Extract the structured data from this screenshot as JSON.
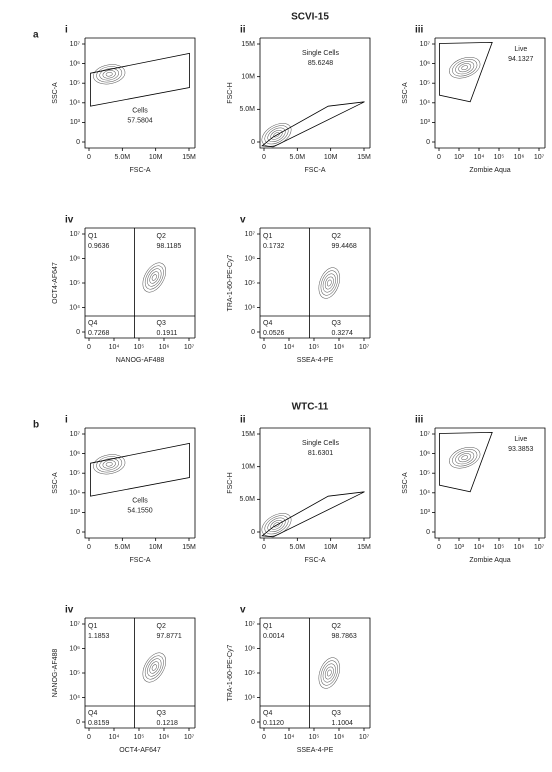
{
  "figure": {
    "sections": [
      {
        "letter": "a",
        "title": "SCVI-15",
        "panels": [
          {
            "numeral": "i",
            "x_label": "FSC-A",
            "y_label": "SSC-A",
            "xticks": [
              "0",
              "5.0M",
              "10M",
              "15M"
            ],
            "yticks": [
              "0",
              "10³",
              "10⁴",
              "10⁵",
              "10⁶",
              "10⁷"
            ],
            "gate": {
              "name": "Cells",
              "value": "57.5804"
            }
          },
          {
            "numeral": "ii",
            "x_label": "FSC-A",
            "y_label": "FSC-H",
            "xticks": [
              "0",
              "5.0M",
              "10M",
              "15M"
            ],
            "yticks": [
              "0",
              "5.0M",
              "10M",
              "15M"
            ],
            "gate": {
              "name": "Single Cells",
              "value": "85.6248"
            }
          },
          {
            "numeral": "iii",
            "x_label": "Zombie Aqua",
            "y_label": "SSC-A",
            "xticks": [
              "0",
              "10³",
              "10⁴",
              "10⁵",
              "10⁶",
              "10⁷"
            ],
            "yticks": [
              "0",
              "10³",
              "10⁴",
              "10⁵",
              "10⁶",
              "10⁷"
            ],
            "gate": {
              "name": "Live",
              "value": "94.1327"
            }
          },
          {
            "numeral": "iv",
            "x_label": "NANOG-AF488",
            "y_label": "OCT4-AF647",
            "xticks": [
              "0",
              "10⁴",
              "10⁵",
              "10⁶",
              "10⁷"
            ],
            "yticks": [
              "0",
              "10⁴",
              "10⁵",
              "10⁶",
              "10⁷"
            ],
            "quadrants": [
              {
                "name": "Q1",
                "value": "0.9636"
              },
              {
                "name": "Q2",
                "value": "98.1185"
              },
              {
                "name": "Q3",
                "value": "0.1911"
              },
              {
                "name": "Q4",
                "value": "0.7268"
              }
            ]
          },
          {
            "numeral": "v",
            "x_label": "SSEA-4-PE",
            "y_label": "TRA-1-60-PE-Cy7",
            "xticks": [
              "0",
              "10⁴",
              "10⁵",
              "10⁶",
              "10⁷"
            ],
            "yticks": [
              "0",
              "10⁴",
              "10⁵",
              "10⁶",
              "10⁷"
            ],
            "quadrants": [
              {
                "name": "Q1",
                "value": "0.1732"
              },
              {
                "name": "Q2",
                "value": "99.4468"
              },
              {
                "name": "Q3",
                "value": "0.3274"
              },
              {
                "name": "Q4",
                "value": "0.0526"
              }
            ]
          }
        ]
      },
      {
        "letter": "b",
        "title": "WTC-11",
        "panels": [
          {
            "numeral": "i",
            "x_label": "FSC-A",
            "y_label": "SSC-A",
            "xticks": [
              "0",
              "5.0M",
              "10M",
              "15M"
            ],
            "yticks": [
              "0",
              "10³",
              "10⁴",
              "10⁵",
              "10⁶",
              "10⁷"
            ],
            "gate": {
              "name": "Cells",
              "value": "54.1550"
            }
          },
          {
            "numeral": "ii",
            "x_label": "FSC-A",
            "y_label": "FSC-H",
            "xticks": [
              "0",
              "5.0M",
              "10M",
              "15M"
            ],
            "yticks": [
              "0",
              "5.0M",
              "10M",
              "15M"
            ],
            "gate": {
              "name": "Single Cells",
              "value": "81.6301"
            }
          },
          {
            "numeral": "iii",
            "x_label": "Zombie Aqua",
            "y_label": "SSC-A",
            "xticks": [
              "0",
              "10³",
              "10⁴",
              "10⁵",
              "10⁶",
              "10⁷"
            ],
            "yticks": [
              "0",
              "10³",
              "10⁴",
              "10⁵",
              "10⁶",
              "10⁷"
            ],
            "gate": {
              "name": "Live",
              "value": "93.3853"
            }
          },
          {
            "numeral": "iv",
            "x_label": "OCT4-AF647",
            "y_label": "NANOG-AF488",
            "xticks": [
              "0",
              "10⁴",
              "10⁵",
              "10⁶",
              "10⁷"
            ],
            "yticks": [
              "0",
              "10⁴",
              "10⁵",
              "10⁶",
              "10⁷"
            ],
            "quadrants": [
              {
                "name": "Q1",
                "value": "1.1853"
              },
              {
                "name": "Q2",
                "value": "97.8771"
              },
              {
                "name": "Q3",
                "value": "0.1218"
              },
              {
                "name": "Q4",
                "value": "0.8159"
              }
            ]
          },
          {
            "numeral": "v",
            "x_label": "SSEA-4-PE",
            "y_label": "TRA-1-60-PE-Cy7",
            "xticks": [
              "0",
              "10⁴",
              "10⁵",
              "10⁶",
              "10⁷"
            ],
            "yticks": [
              "0",
              "10⁴",
              "10⁵",
              "10⁶",
              "10⁷"
            ],
            "quadrants": [
              {
                "name": "Q1",
                "value": "0.0014"
              },
              {
                "name": "Q2",
                "value": "98.7863"
              },
              {
                "name": "Q3",
                "value": "1.1004"
              },
              {
                "name": "Q4",
                "value": "0.1120"
              }
            ]
          }
        ]
      }
    ]
  }
}
